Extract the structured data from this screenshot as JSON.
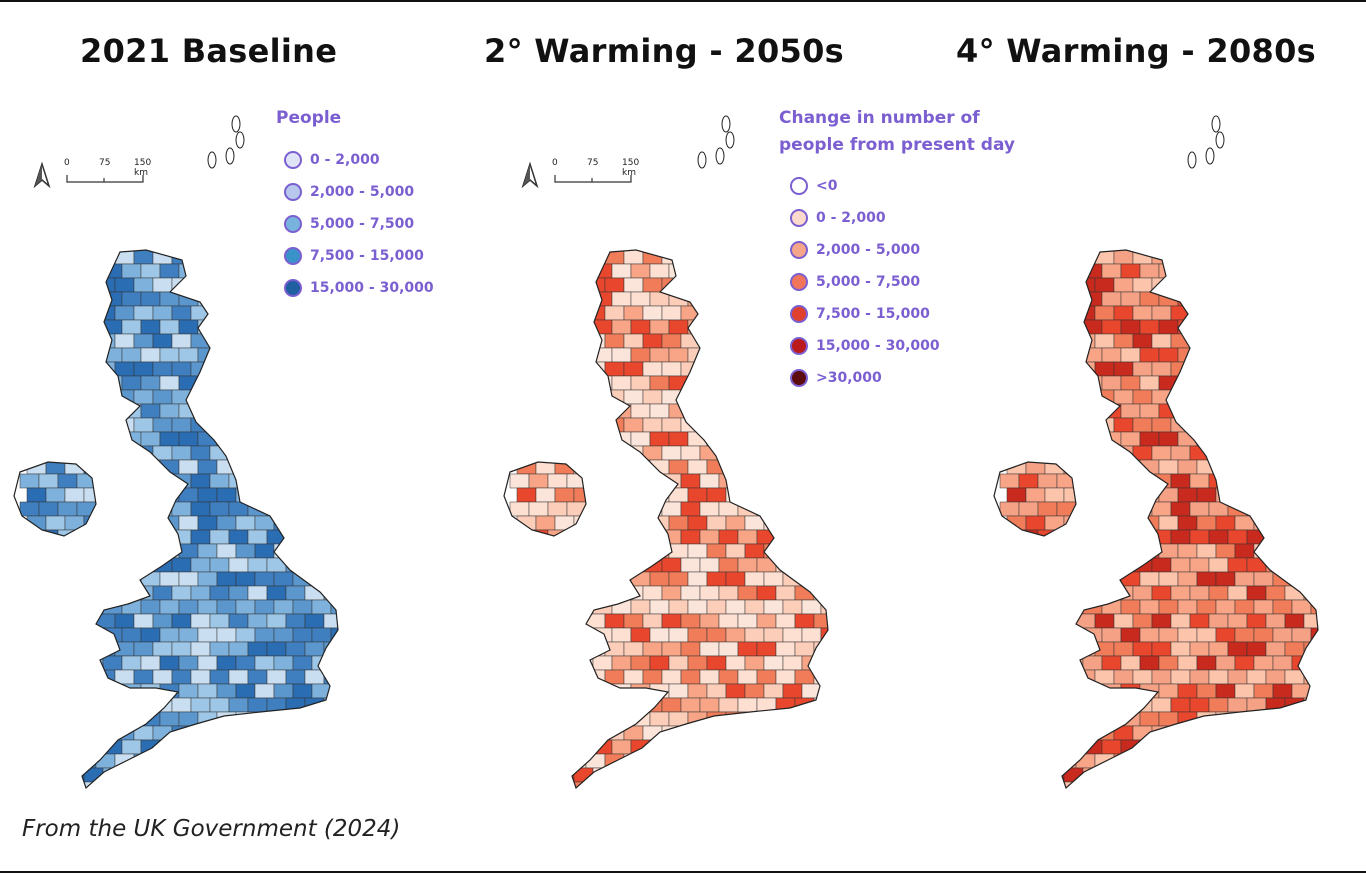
{
  "panels": [
    {
      "title": "2021 Baseline",
      "palette": [
        "#3f7fbf",
        "#5b96cc",
        "#9ec6e6",
        "#c9def1",
        "#7eb2dc",
        "#2a6db3"
      ]
    },
    {
      "title": "2° Warming - 2050s",
      "palette": [
        "#fde0d2",
        "#fccdb8",
        "#f7a586",
        "#f07c5a",
        "#fbe4da",
        "#e8472e"
      ]
    },
    {
      "title": "4° Warming - 2080s",
      "palette": [
        "#f4a185",
        "#f07c5a",
        "#e8472e",
        "#fcc4ab",
        "#f8a487",
        "#c82a1e"
      ]
    }
  ],
  "legend_people": {
    "title": "People",
    "items": [
      {
        "label": "0 - 2,000",
        "color": "#dfe3f5"
      },
      {
        "label": "2,000 - 5,000",
        "color": "#b7c8ec"
      },
      {
        "label": "5,000 - 7,500",
        "color": "#78b3de"
      },
      {
        "label": "7,500 - 15,000",
        "color": "#3a93c8"
      },
      {
        "label": "15,000 - 30,000",
        "color": "#1f5fa2"
      }
    ]
  },
  "legend_change": {
    "title_line1": "Change in number of",
    "title_line2": "people from present day",
    "items": [
      {
        "label": "<0",
        "color": "#ffffff"
      },
      {
        "label": "0 - 2,000",
        "color": "#fbd9cc"
      },
      {
        "label": "2,000 - 5,000",
        "color": "#f5a589"
      },
      {
        "label": "5,000 - 7,500",
        "color": "#f0755a"
      },
      {
        "label": "7,500 - 15,000",
        "color": "#e0402e"
      },
      {
        "label": "15,000 - 30,000",
        "color": "#bb1a1c"
      },
      {
        "label": ">30,000",
        "color": "#5c0b0e"
      }
    ]
  },
  "scale": {
    "t0": "0",
    "t1": "75",
    "t2": "150 km"
  },
  "source_note": "From the UK Government (2024)"
}
